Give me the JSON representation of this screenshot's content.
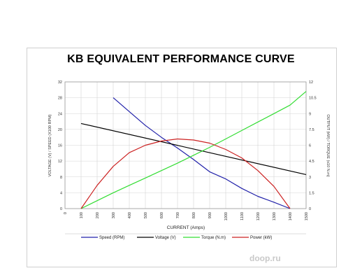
{
  "chart_data": {
    "type": "line",
    "title": "KB EQUIVALENT PERFORMANCE CURVE",
    "xlabel": "CURRENT (Amps)",
    "ylabel_left": "VOLTAGE (V) / SPEED (X100 RPM)",
    "ylabel_right": "OUTPUT (kW) / TORQUE (x10 N.m)",
    "xlim": [
      0,
      1500
    ],
    "ylim_left": [
      0,
      32
    ],
    "ylim_right": [
      0,
      12
    ],
    "x_ticks": [
      "0",
      "100",
      "200",
      "300",
      "400",
      "500",
      "600",
      "700",
      "800",
      "900",
      "1000",
      "1100",
      "1200",
      "1300",
      "1400",
      "1500"
    ],
    "y_left_ticks": [
      "0",
      "4",
      "8",
      "12",
      "16",
      "20",
      "24",
      "28",
      "32"
    ],
    "y_right_ticks": [
      "0",
      "1.5",
      "3",
      "4.5",
      "6",
      "7.5",
      "9",
      "10.5",
      "12"
    ],
    "grid": true,
    "legend_position": "bottom",
    "series": [
      {
        "name": "Speed (RPM)",
        "axis": "left",
        "color": "#2222aa",
        "x": [
          300,
          400,
          500,
          600,
          700,
          800,
          900,
          1000,
          1100,
          1200,
          1300,
          1400
        ],
        "y": [
          28,
          24.5,
          21,
          18,
          15.3,
          12.4,
          9.3,
          7.5,
          5.1,
          3.1,
          1.6,
          0
        ]
      },
      {
        "name": "Voltage (V)",
        "axis": "left",
        "color": "#000000",
        "x": [
          100,
          1500
        ],
        "y": [
          21.5,
          8.6
        ]
      },
      {
        "name": "Torque (N.m)",
        "axis": "right",
        "color": "#33dd33",
        "x": [
          100,
          200,
          300,
          400,
          500,
          600,
          700,
          800,
          900,
          1000,
          1100,
          1200,
          1300,
          1400,
          1500
        ],
        "y": [
          0,
          0.75,
          1.5,
          2.2,
          2.9,
          3.6,
          4.3,
          5.05,
          5.8,
          6.6,
          7.4,
          8.2,
          9.0,
          9.8,
          11.1
        ]
      },
      {
        "name": "Power (kW)",
        "axis": "right",
        "color": "#cc2222",
        "x": [
          100,
          200,
          300,
          400,
          500,
          600,
          700,
          800,
          900,
          1000,
          1100,
          1200,
          1300,
          1400
        ],
        "y": [
          0,
          2.2,
          4.0,
          5.3,
          6.0,
          6.4,
          6.6,
          6.5,
          6.2,
          5.6,
          4.8,
          3.6,
          2.1,
          0
        ]
      }
    ]
  },
  "watermark": "doop.ru"
}
